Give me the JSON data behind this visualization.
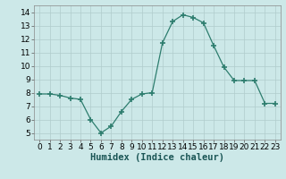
{
  "x": [
    0,
    1,
    2,
    3,
    4,
    5,
    6,
    7,
    8,
    9,
    10,
    11,
    12,
    13,
    14,
    15,
    16,
    17,
    18,
    19,
    20,
    21,
    22,
    23
  ],
  "y": [
    7.9,
    7.9,
    7.8,
    7.6,
    7.5,
    6.0,
    5.0,
    5.5,
    6.6,
    7.5,
    7.9,
    8.0,
    11.7,
    13.3,
    13.8,
    13.6,
    13.2,
    11.5,
    9.9,
    8.9,
    8.9,
    8.9,
    7.2,
    7.2
  ],
  "line_color": "#2d7d6e",
  "marker": "+",
  "marker_size": 4,
  "bg_color": "#cce8e8",
  "grid_color": "#b0cccc",
  "xlabel": "Humidex (Indice chaleur)",
  "xlim": [
    -0.5,
    23.5
  ],
  "ylim": [
    4.5,
    14.5
  ],
  "yticks": [
    5,
    6,
    7,
    8,
    9,
    10,
    11,
    12,
    13,
    14
  ],
  "xticks": [
    0,
    1,
    2,
    3,
    4,
    5,
    6,
    7,
    8,
    9,
    10,
    11,
    12,
    13,
    14,
    15,
    16,
    17,
    18,
    19,
    20,
    21,
    22,
    23
  ],
  "tick_fontsize": 6.5,
  "label_fontsize": 7.5,
  "linewidth": 0.9,
  "marker_thickness": 1.2
}
